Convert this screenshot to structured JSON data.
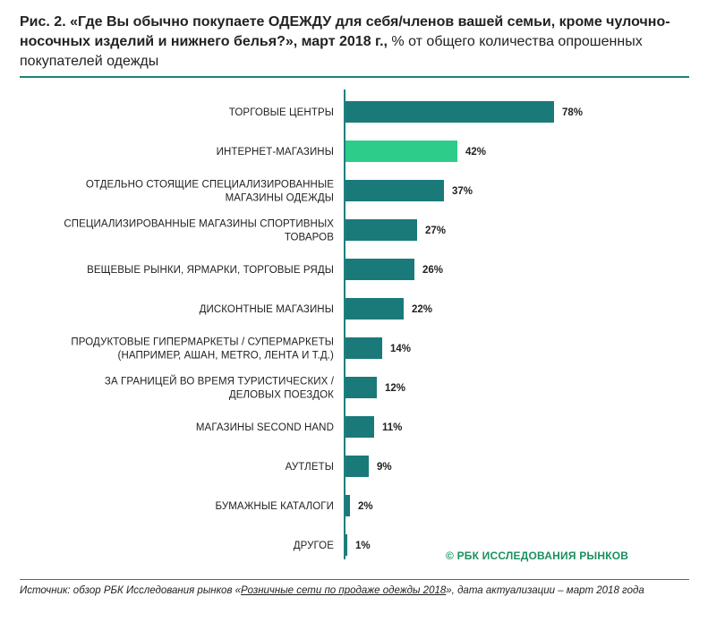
{
  "title": {
    "bold": "Рис. 2. «Где Вы обычно покупаете ОДЕЖДУ для себя/членов вашей семьи, кроме чулочно-носочных изделий и нижнего белья?», март 2018 г.,",
    "normal": " % от общего количества опрошенных покупателей одежды"
  },
  "copyright": "© РБК ИССЛЕДОВАНИЯ РЫНКОВ",
  "source": {
    "prefix": "Источник: обзор РБК Исследования рынков «",
    "link": "Розничные сети по продаже одежды 2018",
    "suffix": "», дата актуализации – март 2018 года"
  },
  "colors": {
    "bar": "#1a7a7a",
    "highlight": "#2ecc8a",
    "axis": "#1f8080"
  },
  "chart_data": {
    "type": "bar",
    "orientation": "horizontal",
    "unit": "%",
    "xlim": [
      0,
      100
    ],
    "grid": false,
    "highlighted_index": 1,
    "categories": [
      [
        "ТОРГОВЫЕ ЦЕНТРЫ"
      ],
      [
        "ИНТЕРНЕТ-МАГАЗИНЫ"
      ],
      [
        "ОТДЕЛЬНО СТОЯЩИЕ СПЕЦИАЛИЗИРОВАННЫЕ",
        "МАГАЗИНЫ ОДЕЖДЫ"
      ],
      [
        "СПЕЦИАЛИЗИРОВАННЫЕ МАГАЗИНЫ СПОРТИВНЫХ",
        "ТОВАРОВ"
      ],
      [
        "ВЕЩЕВЫЕ РЫНКИ, ЯРМАРКИ, ТОРГОВЫЕ РЯДЫ"
      ],
      [
        "ДИСКОНТНЫЕ МАГАЗИНЫ"
      ],
      [
        "ПРОДУКТОВЫЕ ГИПЕРМАРКЕТЫ / СУПЕРМАРКЕТЫ",
        "(НАПРИМЕР, АШАН, METRO, ЛЕНТА И Т.Д.)"
      ],
      [
        "ЗА ГРАНИЦЕЙ ВО ВРЕМЯ ТУРИСТИЧЕСКИХ /",
        "ДЕЛОВЫХ ПОЕЗДОК"
      ],
      [
        "МАГАЗИНЫ SECOND HAND"
      ],
      [
        "АУТЛЕТЫ"
      ],
      [
        "БУМАЖНЫЕ КАТАЛОГИ"
      ],
      [
        "ДРУГОЕ"
      ]
    ],
    "values": [
      78,
      42,
      37,
      27,
      26,
      22,
      14,
      12,
      11,
      9,
      2,
      1
    ],
    "value_labels": [
      "78%",
      "42%",
      "37%",
      "27%",
      "26%",
      "22%",
      "14%",
      "12%",
      "11%",
      "9%",
      "2%",
      "1%"
    ]
  }
}
